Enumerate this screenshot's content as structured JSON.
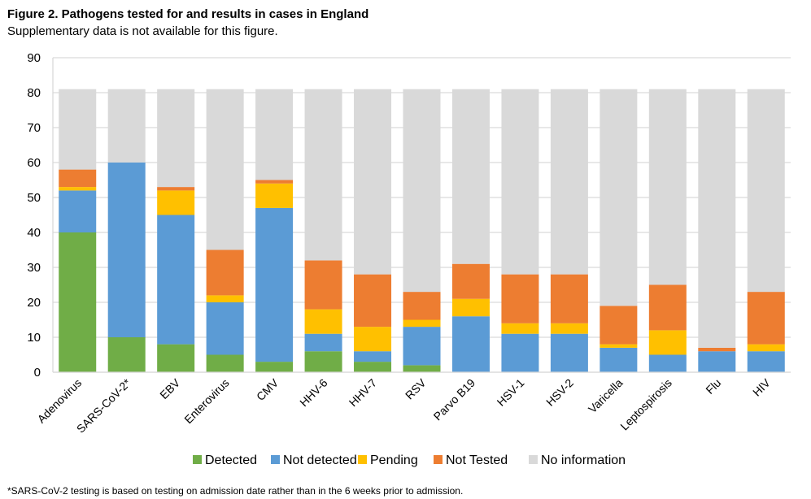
{
  "title": "Figure 2. Pathogens tested for and results in cases in England",
  "subtitle": "Supplementary data is not available for this figure.",
  "footnote": "*SARS-CoV-2 testing is based on testing on admission date rather than in the 6 weeks prior to admission.",
  "chart_data": {
    "type": "bar",
    "stacked": true,
    "title": "Figure 2. Pathogens tested for and results in cases in England",
    "xlabel": "",
    "ylabel": "",
    "ylim": [
      0,
      90
    ],
    "yticks": [
      0,
      10,
      20,
      30,
      40,
      50,
      60,
      70,
      80,
      90
    ],
    "grid": true,
    "legend_position": "bottom",
    "categories": [
      "Adenovirus",
      "SARS-CoV-2*",
      "EBV",
      "Enterovirus",
      "CMV",
      "HHV-6",
      "HHV-7",
      "RSV",
      "Parvo B19",
      "HSV-1",
      "HSV-2",
      "Varicella",
      "Leptospirosis",
      "Flu",
      "HIV"
    ],
    "series": [
      {
        "name": "Detected",
        "color": "#70AD47",
        "values": [
          40,
          10,
          8,
          5,
          3,
          6,
          3,
          2,
          0,
          0,
          0,
          0,
          0,
          0,
          0
        ]
      },
      {
        "name": "Not detected",
        "color": "#5B9BD5",
        "values": [
          12,
          50,
          37,
          15,
          44,
          5,
          3,
          11,
          16,
          11,
          11,
          7,
          5,
          6,
          6
        ]
      },
      {
        "name": "Pending",
        "color": "#FFC000",
        "values": [
          1,
          0,
          7,
          2,
          7,
          7,
          7,
          2,
          5,
          3,
          3,
          1,
          7,
          0,
          2
        ]
      },
      {
        "name": "Not Tested",
        "color": "#ED7D31",
        "values": [
          5,
          0,
          1,
          13,
          1,
          14,
          15,
          8,
          10,
          14,
          14,
          11,
          13,
          1,
          15
        ]
      },
      {
        "name": "No information",
        "color": "#D9D9D9",
        "values": [
          23,
          21,
          28,
          46,
          26,
          49,
          53,
          58,
          50,
          53,
          53,
          62,
          56,
          74,
          58
        ]
      }
    ]
  }
}
